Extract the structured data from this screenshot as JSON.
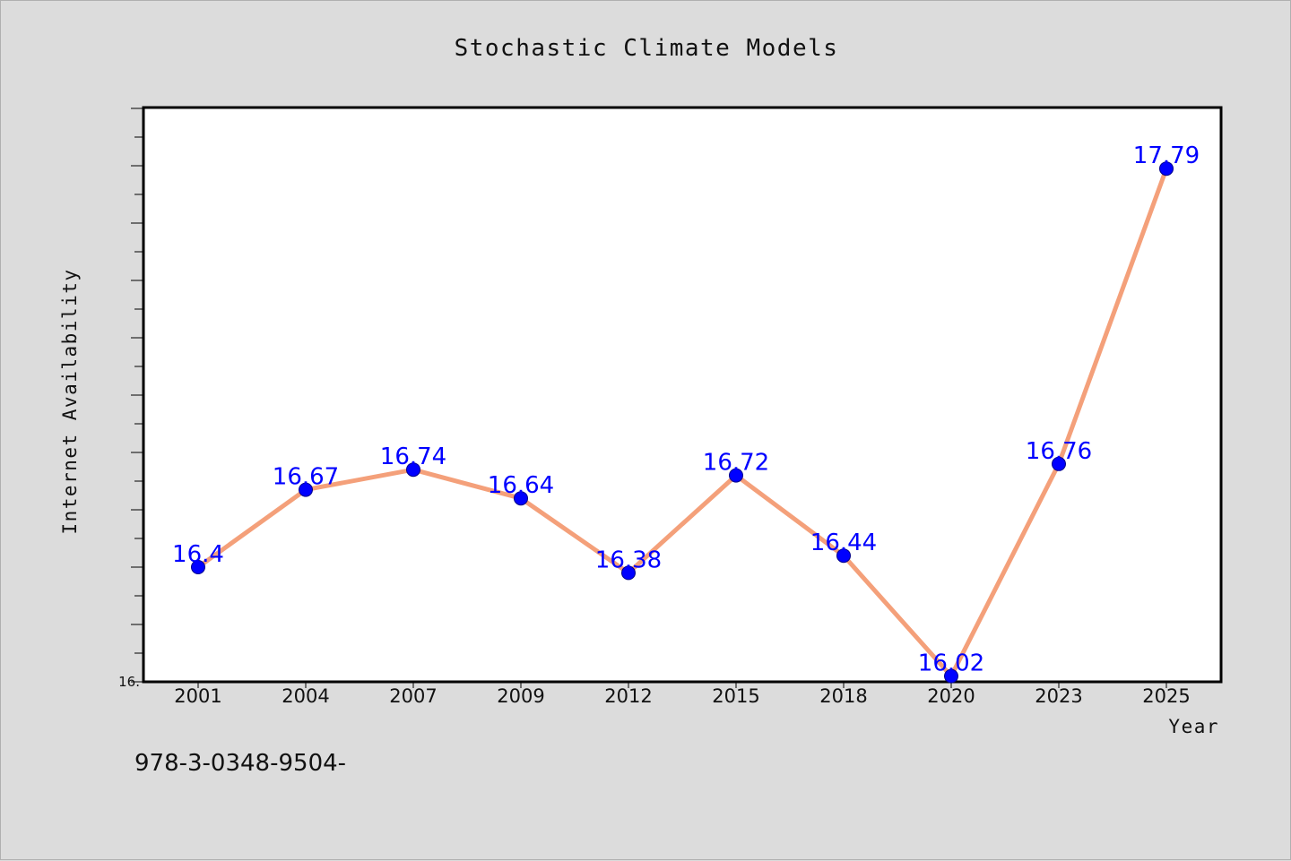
{
  "caption": "978-3-0348-9504-",
  "colors": {
    "background": "#dcdcdc",
    "plot_background": "#ffffff",
    "line": "#f4a07a",
    "marker": "#0000ff",
    "data_label": "#0000ff"
  },
  "chart_data": {
    "type": "line",
    "title": "Stochastic Climate Models",
    "xlabel": "Year",
    "ylabel": "Internet Availability",
    "categories": [
      "2001",
      "2004",
      "2007",
      "2009",
      "2012",
      "2015",
      "2018",
      "2020",
      "2023",
      "2025"
    ],
    "values": [
      16.4,
      16.67,
      16.74,
      16.64,
      16.38,
      16.72,
      16.44,
      16.02,
      16.76,
      17.79
    ],
    "data_labels": [
      "16.4",
      "16.67",
      "16.74",
      "16.64",
      "16.38",
      "16.72",
      "16.44",
      "16.02",
      "16.76",
      "17.79"
    ],
    "y_tick_labels": [
      "16."
    ],
    "ylim": [
      16.0,
      18.0
    ],
    "y_minor_step": 0.1,
    "y_major_step": 0.2,
    "grid": false,
    "legend": "none"
  }
}
